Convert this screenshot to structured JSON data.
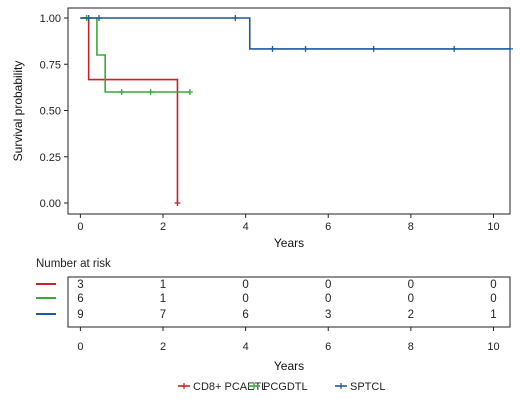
{
  "chart_data": {
    "type": "line",
    "subtype": "kaplan-meier",
    "ylabel": "Survival probability",
    "xlabel": "Years",
    "xlim": [
      -0.3,
      10.4
    ],
    "ylim": [
      0,
      1
    ],
    "x_ticks": [
      0,
      2,
      4,
      6,
      8,
      10
    ],
    "y_ticks": [
      "0.00",
      "0.25",
      "0.50",
      "0.75",
      "1.00"
    ],
    "grid": false,
    "legend_position": "bottom",
    "series": [
      {
        "name": "CD8+ PCAETL",
        "color": "#c8202a",
        "steps": [
          [
            0,
            1.0
          ],
          [
            0.2,
            0.667
          ],
          [
            2.35,
            0.667
          ],
          [
            2.35,
            0.0
          ]
        ],
        "censor": [
          [
            0.15,
            1.0
          ],
          [
            0.6,
            0.667
          ],
          [
            2.35,
            0.0
          ]
        ]
      },
      {
        "name": "PCGDTL",
        "color": "#3aa83a",
        "steps": [
          [
            0,
            1.0
          ],
          [
            0.4,
            0.8
          ],
          [
            0.6,
            0.6
          ],
          [
            2.65,
            0.6
          ]
        ],
        "censor": [
          [
            0.15,
            1.0
          ],
          [
            1.0,
            0.6
          ],
          [
            1.7,
            0.6
          ],
          [
            2.65,
            0.6
          ]
        ]
      },
      {
        "name": "SPTCL",
        "color": "#1f5a9a",
        "steps": [
          [
            0,
            1.0
          ],
          [
            4.1,
            0.833
          ],
          [
            10.4,
            0.833
          ]
        ],
        "censor": [
          [
            0.2,
            1.0
          ],
          [
            0.45,
            1.0
          ],
          [
            3.75,
            1.0
          ],
          [
            4.65,
            0.833
          ],
          [
            5.45,
            0.833
          ],
          [
            7.1,
            0.833
          ],
          [
            9.05,
            0.833
          ],
          [
            10.4,
            0.833
          ]
        ]
      }
    ]
  },
  "risk_table": {
    "title": "Number at risk",
    "xlabel": "Years",
    "x_ticks": [
      "0",
      "2",
      "4",
      "6",
      "8",
      "10"
    ],
    "rows": [
      {
        "color": "#c8202a",
        "values": [
          "3",
          "1",
          "0",
          "0",
          "0",
          "0"
        ]
      },
      {
        "color": "#3aa83a",
        "values": [
          "6",
          "1",
          "0",
          "0",
          "0",
          "0"
        ]
      },
      {
        "color": "#1f5a9a",
        "values": [
          "9",
          "7",
          "6",
          "3",
          "2",
          "1"
        ]
      }
    ]
  },
  "legend": [
    {
      "label": "CD8+ PCAETL",
      "color": "#c8202a"
    },
    {
      "label": "PCGDTL",
      "color": "#3aa83a"
    },
    {
      "label": "SPTCL",
      "color": "#1f5a9a"
    }
  ]
}
